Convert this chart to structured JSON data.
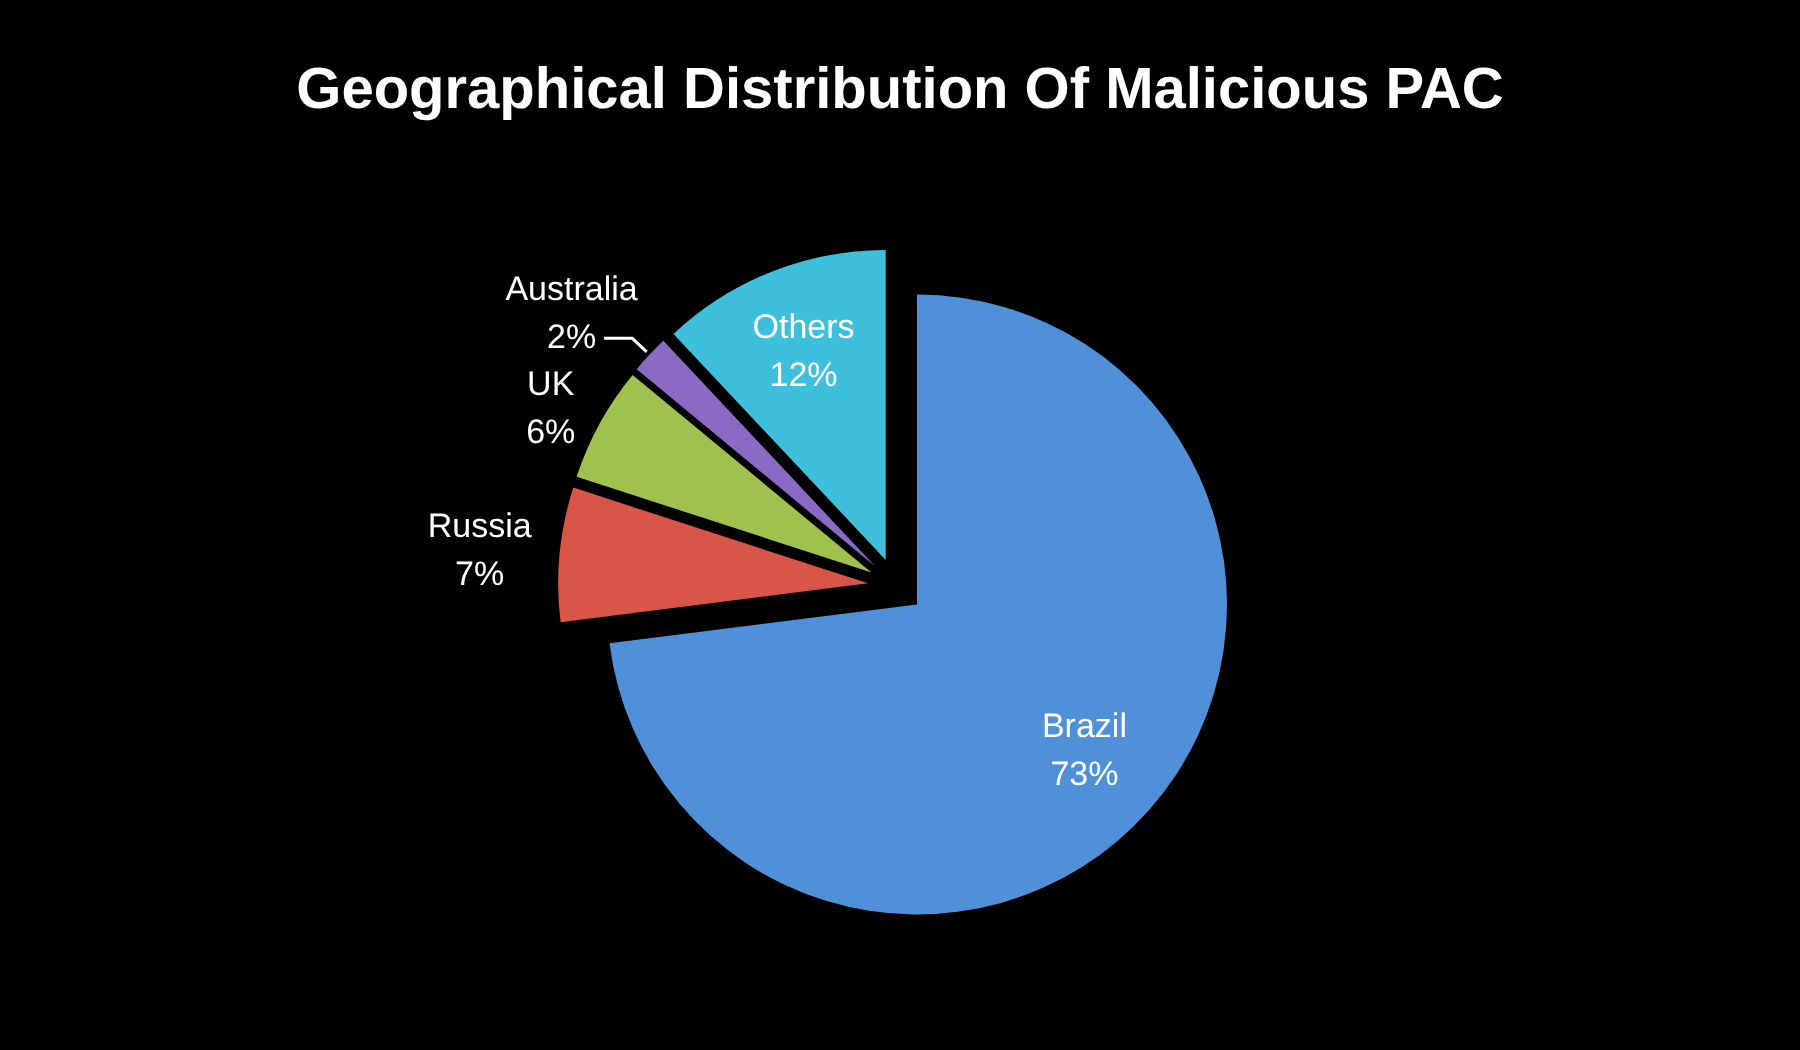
{
  "chart_data": {
    "type": "pie",
    "title": "Geographical Distribution Of Malicious PAC",
    "categories": [
      "Brazil",
      "Russia",
      "UK",
      "Australia",
      "Others"
    ],
    "values": [
      73,
      7,
      6,
      2,
      12
    ],
    "colors": [
      "#4f90d8",
      "#d95548",
      "#9fc24e",
      "#8a6ac4",
      "#3ebfdc"
    ],
    "value_labels": [
      "73%",
      "7%",
      "6%",
      "2%",
      "12%"
    ]
  }
}
